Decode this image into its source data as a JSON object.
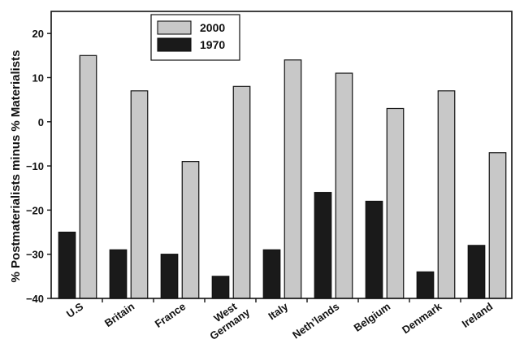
{
  "chart_data": {
    "type": "bar",
    "title": "",
    "xlabel": "",
    "ylabel": "% Postmaterialists minus % Materialists",
    "ylim": [
      -40,
      25
    ],
    "yticks": [
      20,
      10,
      0,
      -10,
      -20,
      -30,
      -40
    ],
    "ytick_labels": [
      "20",
      "10",
      "0",
      "−10",
      "−20",
      "−30",
      "−40"
    ],
    "categories": [
      "U.S",
      "Britain",
      "France",
      "West Germany",
      "Italy",
      "Neth’lands",
      "Belgium",
      "Denmark",
      "Ireland"
    ],
    "category_lines": [
      [
        "U.S"
      ],
      [
        "Britain"
      ],
      [
        "France"
      ],
      [
        "West",
        "Germany"
      ],
      [
        "Italy"
      ],
      [
        "Neth’lands"
      ],
      [
        "Belgium"
      ],
      [
        "Denmark"
      ],
      [
        "Ireland"
      ]
    ],
    "legend_position": "top-left",
    "grid": false,
    "series": [
      {
        "name": "1970",
        "color": "#1a1a1a",
        "values": [
          -25,
          -29,
          -30,
          -35,
          -29,
          -16,
          -18,
          -34,
          -28
        ]
      },
      {
        "name": "2000",
        "color": "#c8c8c8",
        "values": [
          15,
          7,
          -9,
          8,
          14,
          11,
          3,
          7,
          -7
        ]
      }
    ],
    "legend": [
      {
        "name": "2000",
        "color": "#c8c8c8"
      },
      {
        "name": "1970",
        "color": "#1a1a1a"
      }
    ]
  }
}
